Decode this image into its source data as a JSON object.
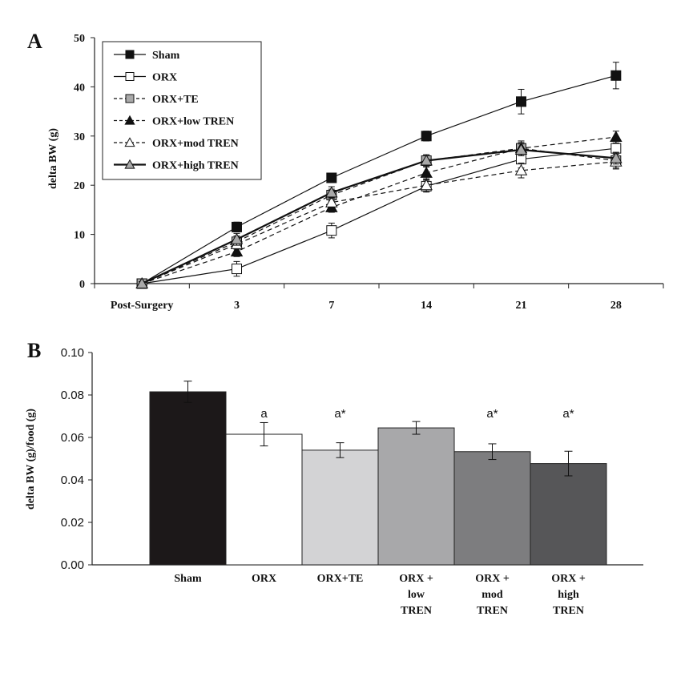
{
  "chart_data": [
    {
      "panel": "A",
      "type": "line",
      "ylabel": "delta BW (g)",
      "ylim": [
        0,
        50
      ],
      "yticks": [
        "0",
        "10",
        "20",
        "30",
        "40",
        "50"
      ],
      "categories": [
        "Post-Surgery",
        "3",
        "7",
        "14",
        "21",
        "28"
      ],
      "legend_position": "top-left",
      "series": [
        {
          "name": "Sham",
          "marker": "square",
          "fill": "#111111",
          "line": "solid",
          "width": 1.2,
          "values": [
            0,
            11.5,
            21.5,
            30.0,
            37.0,
            42.3
          ],
          "errors": [
            0.4,
            1.0,
            0.8,
            1.0,
            2.5,
            2.7
          ]
        },
        {
          "name": "ORX",
          "marker": "square",
          "fill": "#ffffff",
          "line": "solid",
          "width": 1.2,
          "values": [
            0,
            3.0,
            10.8,
            19.8,
            25.3,
            27.5
          ],
          "errors": [
            0.4,
            1.5,
            1.5,
            1.2,
            1.8,
            2.0
          ]
        },
        {
          "name": "ORX+TE",
          "marker": "square",
          "fill": "#a9a9a9",
          "line": "dashed",
          "width": 1.2,
          "values": [
            0,
            8.5,
            18.0,
            25.0,
            27.5,
            25.0
          ],
          "errors": [
            0.4,
            1.2,
            1.2,
            1.2,
            1.5,
            1.5
          ]
        },
        {
          "name": "ORX+low TREN",
          "marker": "triangle",
          "fill": "#111111",
          "line": "dashed",
          "width": 1.2,
          "values": [
            0,
            6.5,
            15.5,
            22.5,
            27.5,
            29.8
          ],
          "errors": [
            0.4,
            1.0,
            1.0,
            1.2,
            1.2,
            1.2
          ]
        },
        {
          "name": "ORX+mod TREN",
          "marker": "triangle",
          "fill": "#ffffff",
          "line": "dashed",
          "width": 1.2,
          "values": [
            0,
            8.0,
            16.5,
            20.0,
            23.0,
            24.8
          ],
          "errors": [
            0.4,
            1.0,
            1.0,
            1.2,
            1.5,
            1.5
          ]
        },
        {
          "name": "ORX+high TREN",
          "marker": "triangle",
          "fill": "#a9a9a9",
          "line": "solid",
          "width": 2.2,
          "values": [
            0,
            9.0,
            18.5,
            25.0,
            27.2,
            25.5
          ],
          "errors": [
            0.4,
            1.2,
            1.2,
            1.2,
            1.2,
            1.2
          ]
        }
      ]
    },
    {
      "panel": "B",
      "type": "bar",
      "ylabel": "delta BW (g)/food (g)",
      "ylim": [
        0,
        0.1
      ],
      "yticks": [
        "0.00",
        "0.02",
        "0.04",
        "0.06",
        "0.08",
        "0.10"
      ],
      "categories": [
        {
          "lines": [
            "Sham"
          ]
        },
        {
          "lines": [
            "ORX"
          ]
        },
        {
          "lines": [
            "ORX+TE"
          ]
        },
        {
          "lines": [
            "ORX +",
            "low",
            "TREN"
          ]
        },
        {
          "lines": [
            "ORX +",
            "mod",
            "TREN"
          ]
        },
        {
          "lines": [
            "ORX +",
            "high",
            "TREN"
          ]
        }
      ],
      "values": [
        0.0815,
        0.0615,
        0.054,
        0.0645,
        0.0533,
        0.0477
      ],
      "errors": [
        0.005,
        0.0055,
        0.0035,
        0.003,
        0.0037,
        0.0058
      ],
      "colors": [
        "#1c1819",
        "#ffffff",
        "#d3d3d5",
        "#a8a8aa",
        "#7d7d7f",
        "#565658"
      ],
      "annotations": [
        "",
        "a",
        "a*",
        "",
        "a*",
        "a*"
      ]
    }
  ]
}
